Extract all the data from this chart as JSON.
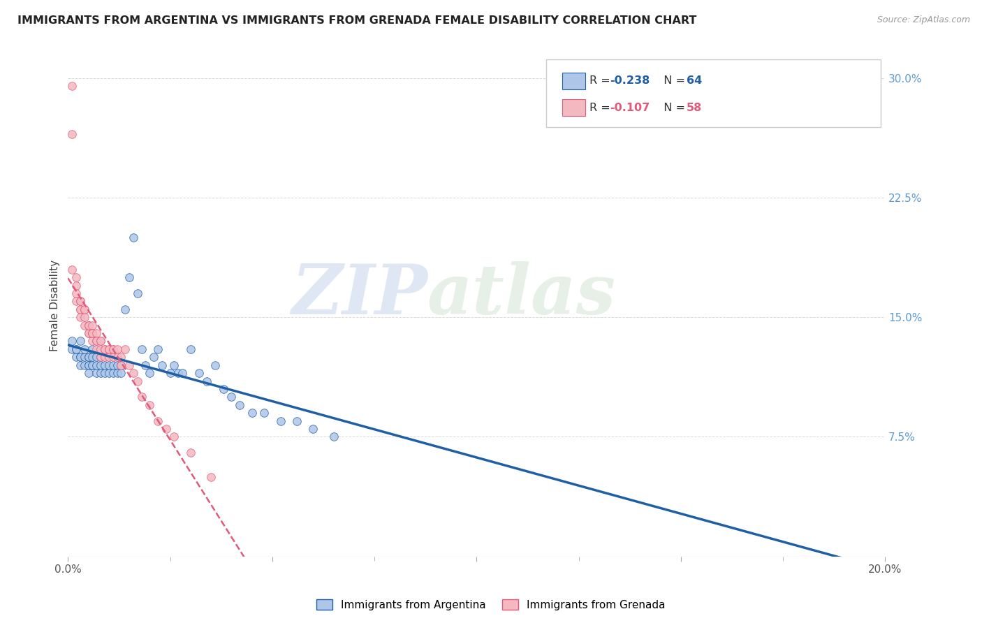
{
  "title": "IMMIGRANTS FROM ARGENTINA VS IMMIGRANTS FROM GRENADA FEMALE DISABILITY CORRELATION CHART",
  "source": "Source: ZipAtlas.com",
  "ylabel": "Female Disability",
  "x_range": [
    0.0,
    0.2
  ],
  "y_range": [
    0.0,
    0.315
  ],
  "argentina_R": -0.238,
  "argentina_N": 64,
  "grenada_R": -0.107,
  "grenada_N": 58,
  "argentina_color": "#aec6e8",
  "grenada_color": "#f4b8c1",
  "argentina_line_color": "#1f5fa6",
  "grenada_line_color": "#e05a7a",
  "argentina_x": [
    0.001,
    0.001,
    0.002,
    0.002,
    0.002,
    0.003,
    0.003,
    0.003,
    0.003,
    0.004,
    0.004,
    0.004,
    0.005,
    0.005,
    0.005,
    0.005,
    0.005,
    0.006,
    0.006,
    0.006,
    0.006,
    0.007,
    0.007,
    0.007,
    0.008,
    0.008,
    0.008,
    0.009,
    0.009,
    0.01,
    0.01,
    0.011,
    0.011,
    0.012,
    0.012,
    0.013,
    0.013,
    0.014,
    0.015,
    0.016,
    0.017,
    0.018,
    0.019,
    0.02,
    0.021,
    0.022,
    0.023,
    0.025,
    0.026,
    0.027,
    0.028,
    0.03,
    0.032,
    0.034,
    0.036,
    0.038,
    0.04,
    0.042,
    0.045,
    0.048,
    0.052,
    0.056,
    0.06,
    0.065
  ],
  "argentina_y": [
    0.135,
    0.13,
    0.13,
    0.125,
    0.13,
    0.125,
    0.12,
    0.125,
    0.135,
    0.12,
    0.125,
    0.13,
    0.12,
    0.125,
    0.115,
    0.12,
    0.125,
    0.12,
    0.125,
    0.12,
    0.13,
    0.115,
    0.12,
    0.125,
    0.12,
    0.115,
    0.125,
    0.115,
    0.12,
    0.115,
    0.12,
    0.115,
    0.12,
    0.12,
    0.115,
    0.12,
    0.115,
    0.155,
    0.175,
    0.2,
    0.165,
    0.13,
    0.12,
    0.115,
    0.125,
    0.13,
    0.12,
    0.115,
    0.12,
    0.115,
    0.115,
    0.13,
    0.115,
    0.11,
    0.12,
    0.105,
    0.1,
    0.095,
    0.09,
    0.09,
    0.085,
    0.085,
    0.08,
    0.075
  ],
  "grenada_x": [
    0.001,
    0.001,
    0.001,
    0.002,
    0.002,
    0.002,
    0.002,
    0.003,
    0.003,
    0.003,
    0.003,
    0.003,
    0.004,
    0.004,
    0.004,
    0.004,
    0.005,
    0.005,
    0.005,
    0.005,
    0.005,
    0.006,
    0.006,
    0.006,
    0.006,
    0.006,
    0.007,
    0.007,
    0.007,
    0.007,
    0.008,
    0.008,
    0.008,
    0.008,
    0.009,
    0.009,
    0.009,
    0.01,
    0.01,
    0.01,
    0.011,
    0.011,
    0.011,
    0.012,
    0.012,
    0.013,
    0.013,
    0.014,
    0.015,
    0.016,
    0.017,
    0.018,
    0.02,
    0.022,
    0.024,
    0.026,
    0.03,
    0.035
  ],
  "grenada_y": [
    0.295,
    0.265,
    0.18,
    0.175,
    0.17,
    0.165,
    0.16,
    0.16,
    0.155,
    0.155,
    0.15,
    0.16,
    0.155,
    0.15,
    0.145,
    0.155,
    0.145,
    0.14,
    0.145,
    0.14,
    0.145,
    0.14,
    0.145,
    0.14,
    0.135,
    0.14,
    0.14,
    0.135,
    0.13,
    0.135,
    0.135,
    0.13,
    0.125,
    0.135,
    0.13,
    0.125,
    0.13,
    0.13,
    0.125,
    0.13,
    0.13,
    0.125,
    0.13,
    0.13,
    0.125,
    0.125,
    0.12,
    0.13,
    0.12,
    0.115,
    0.11,
    0.1,
    0.095,
    0.085,
    0.08,
    0.075,
    0.065,
    0.05
  ],
  "legend_label_argentina": "Immigrants from Argentina",
  "legend_label_grenada": "Immigrants from Grenada",
  "watermark_zip": "ZIP",
  "watermark_atlas": "atlas",
  "background_color": "#ffffff",
  "grid_color": "#d0d0d0",
  "trendline_extend_to": 0.2
}
